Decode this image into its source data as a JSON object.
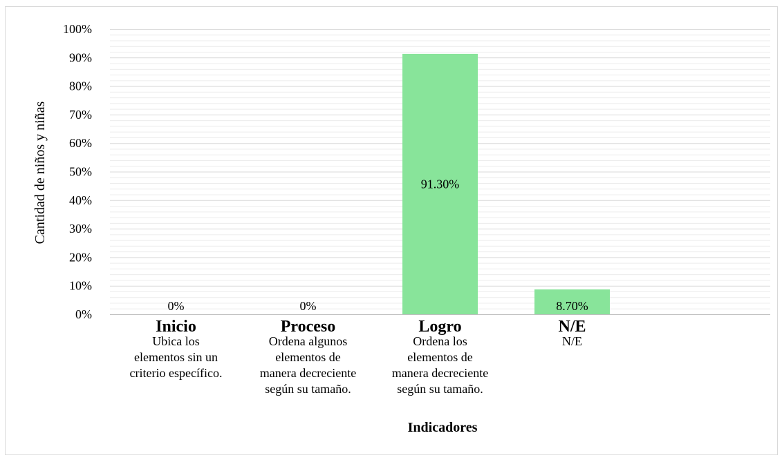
{
  "chart_data": {
    "type": "bar",
    "categories": [
      "Inicio",
      "Proceso",
      "Logro",
      "N/E"
    ],
    "descriptions": [
      [
        "Ubica los",
        "elementos sin un",
        "criterio específico."
      ],
      [
        "Ordena algunos",
        "elementos de",
        "manera decreciente",
        "según su tamaño."
      ],
      [
        "Ordena los",
        "elementos de",
        "manera decreciente",
        "según su tamaño."
      ],
      [
        "N/E"
      ]
    ],
    "values": [
      0,
      0,
      91.3,
      8.7
    ],
    "data_labels": [
      "0%",
      "0%",
      "91.30%",
      "8.70%"
    ],
    "xlabel": "Indicadores",
    "ylabel": "Cantidad de niños y niñas",
    "ylim": [
      0,
      100
    ],
    "yticks": [
      "0%",
      "10%",
      "20%",
      "30%",
      "40%",
      "50%",
      "60%",
      "70%",
      "80%",
      "90%",
      "100%"
    ],
    "grid": true,
    "bar_color": "#88e49a"
  }
}
